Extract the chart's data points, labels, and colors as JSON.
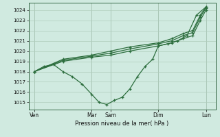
{
  "background_color": "#d0eae0",
  "grid_color": "#b0ccbc",
  "line_color": "#2d6e3e",
  "ylabel": "Pression niveau de la mer( hPa )",
  "ylim": [
    1014.3,
    1024.7
  ],
  "yticks": [
    1015,
    1016,
    1017,
    1018,
    1019,
    1020,
    1021,
    1022,
    1023,
    1024
  ],
  "xtick_labels": [
    "Ven",
    "Mar",
    "Sam",
    "Dim",
    "Lun"
  ],
  "xtick_pos": [
    0.0,
    3.0,
    4.0,
    6.5,
    9.0
  ],
  "lines": [
    {
      "x": [
        0,
        0.5,
        1.0,
        1.5,
        2.0,
        2.5,
        3.0,
        3.4,
        3.8,
        4.2,
        4.6,
        5.0,
        5.4,
        5.8,
        6.2,
        6.5,
        7.0,
        7.5,
        8.0,
        8.5,
        9.0
      ],
      "y": [
        1018.0,
        1018.5,
        1018.7,
        1018.0,
        1017.5,
        1016.8,
        1015.8,
        1015.0,
        1014.8,
        1015.2,
        1015.5,
        1016.3,
        1017.5,
        1018.5,
        1019.2,
        1020.5,
        1020.7,
        1021.0,
        1021.5,
        1023.5,
        1024.3
      ]
    },
    {
      "x": [
        0,
        1.5,
        3.0,
        4.0,
        5.0,
        6.5,
        7.2,
        7.8,
        8.3,
        8.7,
        9.0
      ],
      "y": [
        1018.0,
        1019.0,
        1019.4,
        1019.6,
        1020.0,
        1020.5,
        1020.8,
        1021.2,
        1021.5,
        1023.0,
        1024.0
      ]
    },
    {
      "x": [
        0,
        1.5,
        3.0,
        4.0,
        5.0,
        6.5,
        7.2,
        7.8,
        8.3,
        8.7,
        9.0
      ],
      "y": [
        1018.0,
        1019.1,
        1019.5,
        1019.8,
        1020.2,
        1020.7,
        1021.0,
        1021.5,
        1021.8,
        1023.3,
        1024.2
      ]
    },
    {
      "x": [
        0,
        1.5,
        3.0,
        4.0,
        5.0,
        6.5,
        7.2,
        7.8,
        8.3,
        8.7,
        9.0
      ],
      "y": [
        1018.0,
        1019.2,
        1019.6,
        1020.0,
        1020.4,
        1020.8,
        1021.2,
        1021.7,
        1022.0,
        1023.5,
        1024.3
      ]
    }
  ]
}
